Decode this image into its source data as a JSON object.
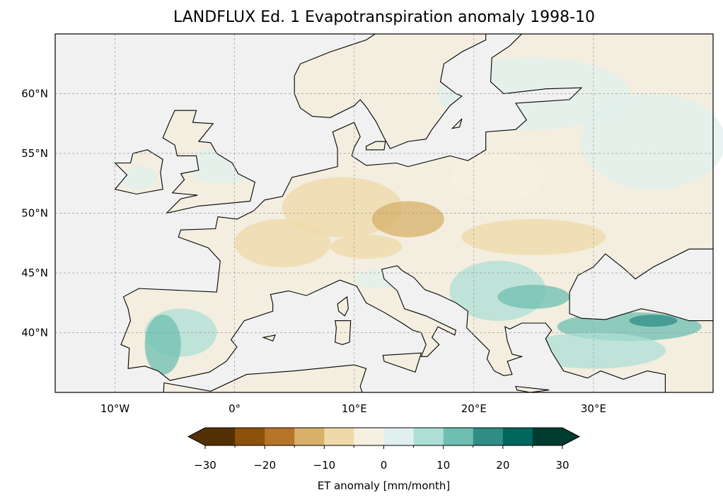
{
  "title": "LANDFLUX Ed. 1 Evapotranspiration anomaly 1998-10",
  "map": {
    "extent_lon": [
      -15,
      40
    ],
    "extent_lat": [
      35,
      65
    ],
    "lon_ticks": [
      {
        "v": -10,
        "label": "10°W"
      },
      {
        "v": 0,
        "label": "0°"
      },
      {
        "v": 10,
        "label": "10°E"
      },
      {
        "v": 20,
        "label": "20°E"
      },
      {
        "v": 30,
        "label": "30°E"
      }
    ],
    "lat_ticks": [
      {
        "v": 40,
        "label": "40°N"
      },
      {
        "v": 45,
        "label": "45°N"
      },
      {
        "v": 50,
        "label": "50°N"
      },
      {
        "v": 55,
        "label": "55°N"
      },
      {
        "v": 60,
        "label": "60°N"
      }
    ],
    "ocean_color": "#f1f1f1",
    "land_color": "#f3eedf"
  },
  "colorbar": {
    "label": "ET anomaly [mm/month]",
    "range": [
      -30,
      30
    ],
    "tick_values": [
      -30,
      -20,
      -10,
      0,
      10,
      20,
      30
    ],
    "tick_labels": [
      "−30",
      "−20",
      "−10",
      "0",
      "10",
      "20",
      "30"
    ],
    "under_color": "#543005",
    "over_color": "#003c30",
    "colors": [
      "#543005",
      "#8c510a",
      "#b67529",
      "#d7b06a",
      "#efd9a8",
      "#f5f0df",
      "#e0f0ee",
      "#aedfd6",
      "#6dbfb1",
      "#2f8d85",
      "#01665e",
      "#003c30"
    ]
  }
}
